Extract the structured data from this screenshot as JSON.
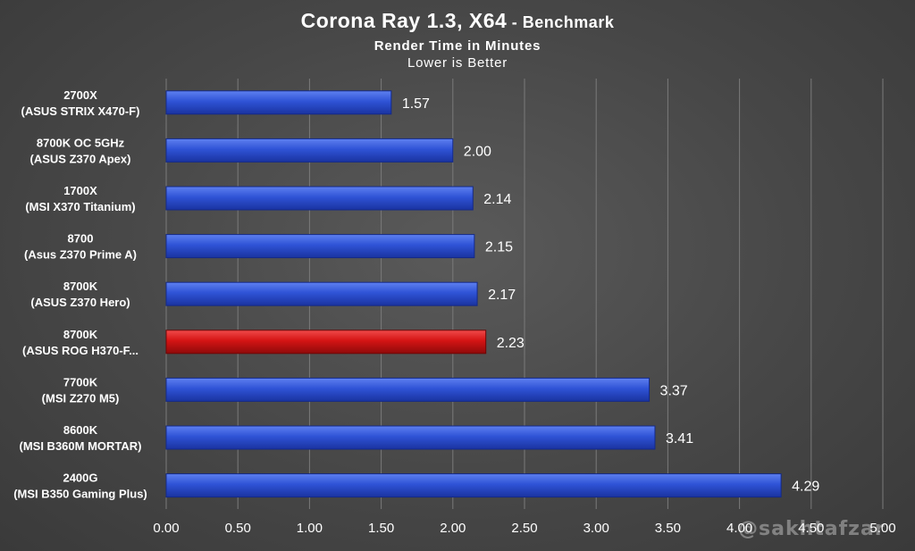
{
  "chart_data": {
    "type": "bar",
    "orientation": "horizontal",
    "title": "Corona Ray 1.3, X64",
    "title_suffix": " - Benchmark",
    "subtitle": "Render Time in Minutes",
    "note": "Lower is Better",
    "categories": [
      [
        "2700X",
        "(ASUS STRIX X470-F)"
      ],
      [
        "8700K OC 5GHz",
        "(ASUS Z370 Apex)"
      ],
      [
        "1700X",
        "(MSI X370 Titanium)"
      ],
      [
        "8700",
        "(Asus Z370 Prime A)"
      ],
      [
        "8700K",
        "(ASUS Z370 Hero)"
      ],
      [
        "8700K",
        "(ASUS ROG H370-F..."
      ],
      [
        "7700K",
        "(MSI Z270 M5)"
      ],
      [
        "8600K",
        "(MSI B360M MORTAR)"
      ],
      [
        "2400G",
        "(MSI B350 Gaming Plus)"
      ]
    ],
    "values": [
      1.57,
      2.0,
      2.14,
      2.15,
      2.17,
      2.23,
      3.37,
      3.41,
      4.29
    ],
    "value_labels": [
      "1.57",
      "2.00",
      "2.14",
      "2.15",
      "2.17",
      "2.23",
      "3.37",
      "3.41",
      "4.29"
    ],
    "highlight_index": 5,
    "xlim": [
      0,
      5
    ],
    "xticks": [
      "0.00",
      "0.50",
      "1.00",
      "1.50",
      "2.00",
      "2.50",
      "3.00",
      "3.50",
      "4.00",
      "4.50",
      "5.00"
    ],
    "grid": "vertical",
    "colors": {
      "bar": "#2f53d6",
      "bar_highlight": "#d41414",
      "grid": "#7a7a7a",
      "text": "#ffffff"
    }
  },
  "watermark": "@sakhtafzar"
}
